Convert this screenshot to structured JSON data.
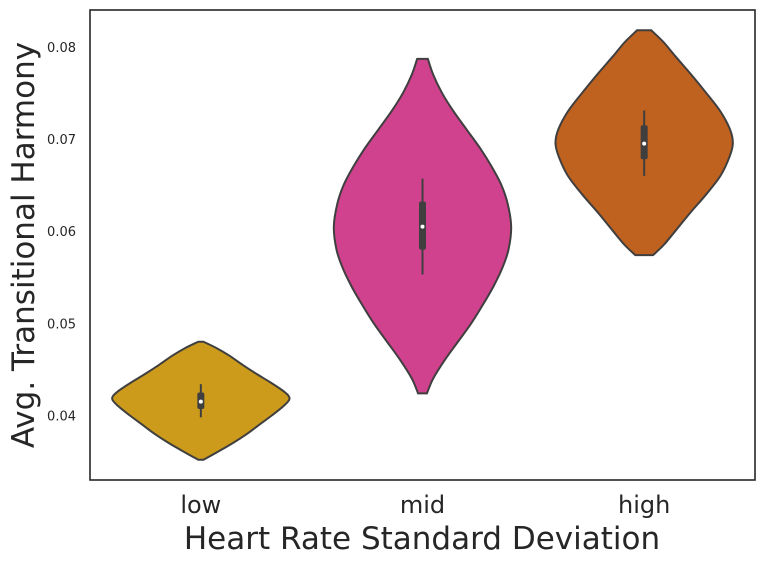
{
  "chart_data": {
    "type": "violin",
    "xlabel": "Heart Rate Standard Deviation",
    "ylabel": "Avg. Transitional Harmony",
    "categories": [
      "low",
      "mid",
      "high"
    ],
    "ylim": [
      0.033,
      0.084
    ],
    "yticks": [
      "0.04",
      "0.05",
      "0.06",
      "0.07",
      "0.08"
    ],
    "grid": false,
    "legend": "none",
    "violins": [
      {
        "category": "low",
        "color": "#cc9b1c",
        "min": 0.0352,
        "max": 0.048,
        "q1": 0.0407,
        "median": 0.0415,
        "q3": 0.0425,
        "whisker_low": 0.0398,
        "whisker_high": 0.0434,
        "profile": [
          [
            0.0352,
            0.03
          ],
          [
            0.036,
            0.18
          ],
          [
            0.037,
            0.36
          ],
          [
            0.038,
            0.52
          ],
          [
            0.039,
            0.66
          ],
          [
            0.04,
            0.8
          ],
          [
            0.041,
            0.93
          ],
          [
            0.0418,
            1.0
          ],
          [
            0.0425,
            0.95
          ],
          [
            0.0435,
            0.8
          ],
          [
            0.0445,
            0.63
          ],
          [
            0.0455,
            0.47
          ],
          [
            0.0465,
            0.32
          ],
          [
            0.0473,
            0.18
          ],
          [
            0.048,
            0.03
          ]
        ]
      },
      {
        "category": "mid",
        "color": "#d0418e",
        "min": 0.0424,
        "max": 0.0787,
        "q1": 0.058,
        "median": 0.0605,
        "q3": 0.0632,
        "whisker_low": 0.0553,
        "whisker_high": 0.0657,
        "profile": [
          [
            0.0424,
            0.05
          ],
          [
            0.044,
            0.12
          ],
          [
            0.046,
            0.25
          ],
          [
            0.048,
            0.4
          ],
          [
            0.05,
            0.55
          ],
          [
            0.052,
            0.68
          ],
          [
            0.054,
            0.8
          ],
          [
            0.056,
            0.9
          ],
          [
            0.058,
            0.97
          ],
          [
            0.0605,
            1.0
          ],
          [
            0.063,
            0.96
          ],
          [
            0.065,
            0.89
          ],
          [
            0.067,
            0.78
          ],
          [
            0.069,
            0.65
          ],
          [
            0.071,
            0.5
          ],
          [
            0.073,
            0.35
          ],
          [
            0.075,
            0.22
          ],
          [
            0.077,
            0.12
          ],
          [
            0.0787,
            0.06
          ]
        ]
      },
      {
        "category": "high",
        "color": "#bf611f",
        "min": 0.0574,
        "max": 0.0818,
        "q1": 0.0678,
        "median": 0.0695,
        "q3": 0.0715,
        "whisker_low": 0.066,
        "whisker_high": 0.0731,
        "profile": [
          [
            0.0574,
            0.1
          ],
          [
            0.0585,
            0.22
          ],
          [
            0.06,
            0.35
          ],
          [
            0.062,
            0.52
          ],
          [
            0.064,
            0.7
          ],
          [
            0.066,
            0.86
          ],
          [
            0.068,
            0.96
          ],
          [
            0.0695,
            1.0
          ],
          [
            0.071,
            0.97
          ],
          [
            0.073,
            0.86
          ],
          [
            0.075,
            0.7
          ],
          [
            0.077,
            0.53
          ],
          [
            0.079,
            0.35
          ],
          [
            0.0805,
            0.22
          ],
          [
            0.0818,
            0.08
          ]
        ]
      }
    ]
  }
}
